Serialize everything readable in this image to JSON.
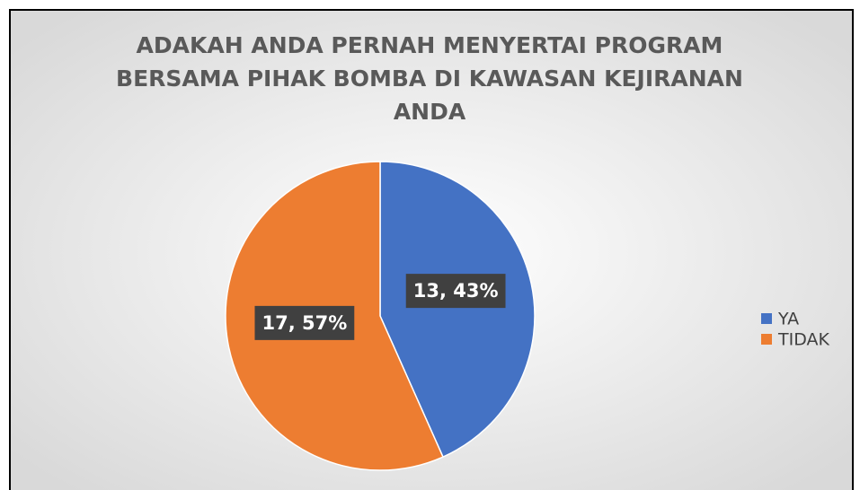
{
  "chart_data": {
    "type": "pie",
    "title": [
      "ADAKAH ANDA PERNAH  MENYERTAI PROGRAM",
      "BERSAMA PIHAK BOMBA DI KAWASAN KEJIRANAN",
      "ANDA"
    ],
    "categories": [
      "YA",
      "TIDAK"
    ],
    "values": [
      13,
      17
    ],
    "value_labels": [
      "13, 43%",
      "17, 57%"
    ],
    "colors": [
      "#4472c4",
      "#ed7d31"
    ],
    "legend": "right"
  }
}
